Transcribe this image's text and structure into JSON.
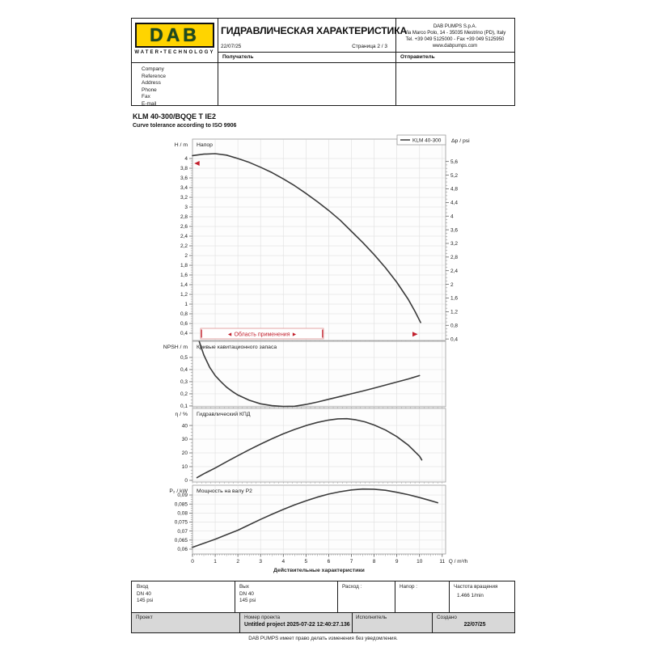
{
  "header": {
    "logo_text": "DAB",
    "logo_tagline": "WATER•TECHNOLOGY",
    "title": "ГИДРАВЛИЧЕСКАЯ ХАРАКТЕРИСТИКА",
    "date": "22/07/25",
    "page_info": "Страница 2 / 3",
    "company_lines": [
      "DAB PUMPS S.p.A.",
      "Via Marco Polo, 14 - 35035 Mestrino (PD), Italy",
      "Tel. +39 049 5125000 - Fax +39 049 5125950",
      "www.dabpumps.com"
    ],
    "recipient_label": "Получатель",
    "sender_label": "Отправитель",
    "contact_labels": [
      "Company",
      "Reference",
      "Address",
      "Phone",
      "Fax",
      "E-mail"
    ]
  },
  "pump": {
    "model": "KLM 40-300/BQQE T IE2",
    "tolerance_note": "Curve tolerance according to ISO 9906"
  },
  "charts_common": {
    "xlim": [
      0,
      11.15
    ],
    "xticks": [
      0,
      1,
      2,
      3,
      4,
      5,
      6,
      7,
      8,
      9,
      10,
      11
    ],
    "xlabel": "Q / m³/h",
    "caption": "Действительные характеристики",
    "grid": true,
    "curve_color": "#3c3c3c",
    "accent_red": "#c2202d"
  },
  "icons": {
    "left_arrow": "◄",
    "right_arrow": "►"
  },
  "chart_data": [
    {
      "type": "line",
      "title": "Напор",
      "ylabel": "H / m",
      "y2label": "Δp / psi",
      "legend": "KLM 40-300",
      "legend_position": "top-right",
      "ylim": [
        0.25,
        4.4
      ],
      "yticks": [
        4,
        3.8,
        3.6,
        3.4,
        3.2,
        3,
        2.8,
        2.6,
        2.4,
        2.2,
        2,
        1.8,
        1.6,
        1.4,
        1.2,
        1,
        0.8,
        0.6,
        0.4
      ],
      "y2ticks": [
        5.6,
        5.2,
        4.8,
        4.4,
        4,
        3.6,
        3.2,
        2.8,
        2.4,
        2,
        1.6,
        1.2,
        0.8,
        0.4
      ],
      "series": [
        [
          0,
          4.06
        ],
        [
          0.5,
          4.09
        ],
        [
          1,
          4.1
        ],
        [
          1.5,
          4.07
        ],
        [
          2,
          4.0
        ],
        [
          2.5,
          3.92
        ],
        [
          3,
          3.82
        ],
        [
          3.5,
          3.71
        ],
        [
          4,
          3.58
        ],
        [
          4.5,
          3.44
        ],
        [
          5,
          3.28
        ],
        [
          5.5,
          3.11
        ],
        [
          6,
          2.93
        ],
        [
          6.5,
          2.73
        ],
        [
          7,
          2.5
        ],
        [
          7.5,
          2.27
        ],
        [
          8,
          2.02
        ],
        [
          8.5,
          1.75
        ],
        [
          9,
          1.45
        ],
        [
          9.5,
          1.1
        ],
        [
          9.8,
          0.85
        ],
        [
          10.05,
          0.62
        ]
      ],
      "range_markers": {
        "start": [
          0.15,
          3.9
        ],
        "end": [
          9.85,
          0.38
        ]
      },
      "annotation": "Область применения"
    },
    {
      "type": "line",
      "title": "Кривые кавитационного запаса",
      "ylabel": "NPSH / m",
      "ylim": [
        0.093,
        0.633
      ],
      "yticks": [
        0.5,
        0.4,
        0.3,
        0.2,
        0.1
      ],
      "series": [
        [
          0.3,
          0.63
        ],
        [
          0.5,
          0.52
        ],
        [
          0.75,
          0.42
        ],
        [
          1,
          0.35
        ],
        [
          1.25,
          0.3
        ],
        [
          1.5,
          0.255
        ],
        [
          1.75,
          0.22
        ],
        [
          2,
          0.19
        ],
        [
          2.5,
          0.147
        ],
        [
          3,
          0.118
        ],
        [
          3.5,
          0.102
        ],
        [
          4,
          0.096
        ],
        [
          4.5,
          0.098
        ],
        [
          5,
          0.112
        ],
        [
          5.5,
          0.132
        ],
        [
          6,
          0.155
        ],
        [
          6.5,
          0.178
        ],
        [
          7,
          0.2
        ],
        [
          7.5,
          0.223
        ],
        [
          8,
          0.247
        ],
        [
          8.5,
          0.272
        ],
        [
          9,
          0.297
        ],
        [
          9.5,
          0.322
        ],
        [
          10,
          0.35
        ]
      ]
    },
    {
      "type": "line",
      "title": "Гидравлический КПД",
      "ylabel": "η / %",
      "ylim": [
        -1.2,
        52.4
      ],
      "yticks": [
        40,
        30,
        20,
        10,
        0
      ],
      "series": [
        [
          0.2,
          2
        ],
        [
          0.5,
          4.8
        ],
        [
          1,
          9
        ],
        [
          1.5,
          13.6
        ],
        [
          2,
          18
        ],
        [
          2.5,
          22.3
        ],
        [
          3,
          26.4
        ],
        [
          3.5,
          30.3
        ],
        [
          4,
          33.9
        ],
        [
          4.5,
          37.1
        ],
        [
          5,
          39.9
        ],
        [
          5.5,
          42.2
        ],
        [
          6,
          43.9
        ],
        [
          6.4,
          44.8
        ],
        [
          6.8,
          44.9
        ],
        [
          7.2,
          44.1
        ],
        [
          7.6,
          42.6
        ],
        [
          8,
          40.3
        ],
        [
          8.5,
          36.7
        ],
        [
          9,
          31.9
        ],
        [
          9.5,
          25.7
        ],
        [
          10,
          17.6
        ],
        [
          10.1,
          14.9
        ]
      ]
    },
    {
      "type": "line",
      "title": "Мощность на валу P2",
      "ylabel": "P₂ / kW",
      "ylim": [
        0.0573,
        0.0954
      ],
      "yticks": [
        0.09,
        0.085,
        0.08,
        0.075,
        0.07,
        0.065,
        0.06
      ],
      "series": [
        [
          0,
          0.061
        ],
        [
          0.5,
          0.0632
        ],
        [
          1,
          0.0655
        ],
        [
          1.5,
          0.068
        ],
        [
          2,
          0.0705
        ],
        [
          2.5,
          0.0735
        ],
        [
          3,
          0.0765
        ],
        [
          3.5,
          0.0793
        ],
        [
          4,
          0.082
        ],
        [
          4.5,
          0.0845
        ],
        [
          5,
          0.0868
        ],
        [
          5.5,
          0.0888
        ],
        [
          6,
          0.0905
        ],
        [
          6.5,
          0.0918
        ],
        [
          7,
          0.0928
        ],
        [
          7.5,
          0.0933
        ],
        [
          8,
          0.0932
        ],
        [
          8.5,
          0.0926
        ],
        [
          9,
          0.0915
        ],
        [
          9.5,
          0.0902
        ],
        [
          10,
          0.0886
        ],
        [
          10.4,
          0.0872
        ],
        [
          10.8,
          0.0857
        ]
      ]
    }
  ],
  "specs_row": {
    "inlet_label": "Вход",
    "inlet_lines": [
      "DN 40",
      "145 psi"
    ],
    "outlet_label": "Вых",
    "outlet_lines": [
      "DN 40",
      "145 psi"
    ],
    "flow_label": "Расход :",
    "head_label": "Напор :",
    "speed_label": "Частота вращения",
    "speed_value": "1.466 1/min"
  },
  "project_row": {
    "project_label": "Проект",
    "number_label": "Номер проекта",
    "number_value": "Untitled project 2025-07-22 12:40:27.136",
    "executor_label": "Исполнитель",
    "created_label": "Создано",
    "created_value": "22/07/25"
  },
  "page": {
    "footer_note": "DAB PUMPS имеет право делать изменения без уведомления."
  }
}
